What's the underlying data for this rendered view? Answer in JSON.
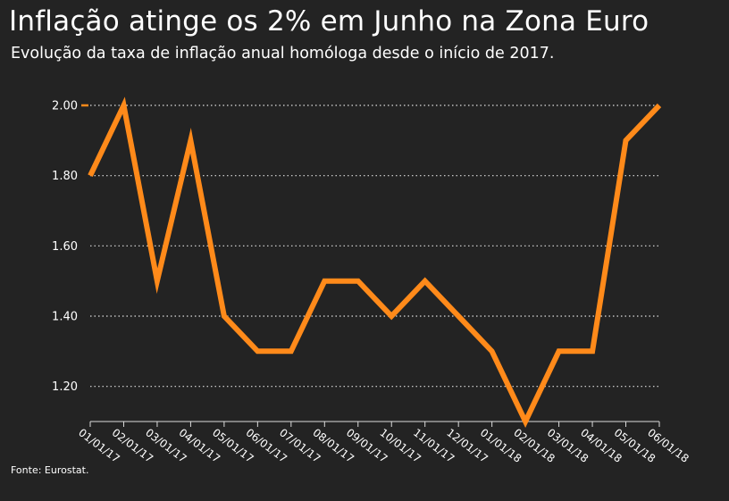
{
  "header": {
    "title": "Inflação atinge os 2% em Junho na Zona Euro",
    "subtitle": "Evolução da taxa de inflação anual homóloga desde o início de 2017."
  },
  "footer": {
    "source": "Fonte: Eurostat."
  },
  "colors": {
    "background": "#232323",
    "line": "#ff8a1a",
    "grid": "#dddddd",
    "text": "#ffffff"
  },
  "chart_data": {
    "type": "line",
    "title": "",
    "xlabel": "",
    "ylabel": "",
    "categories": [
      "01/01/17",
      "02/01/17",
      "03/01/17",
      "04/01/17",
      "05/01/17",
      "06/01/17",
      "07/01/17",
      "08/01/17",
      "09/01/17",
      "10/01/17",
      "11/01/17",
      "12/01/17",
      "01/01/18",
      "02/01/18",
      "03/01/18",
      "04/01/18",
      "05/01/18",
      "06/01/18"
    ],
    "series": [
      {
        "values": [
          1.8,
          2.0,
          1.5,
          1.9,
          1.4,
          1.3,
          1.3,
          1.5,
          1.5,
          1.4,
          1.5,
          1.4,
          1.3,
          1.1,
          1.3,
          1.3,
          1.9,
          2.0
        ]
      }
    ],
    "yticks": [
      "1.20",
      "1.40",
      "1.60",
      "1.80",
      "2.00"
    ],
    "ylim": [
      1.1,
      2.0
    ],
    "grid": "horizontal-dotted"
  }
}
